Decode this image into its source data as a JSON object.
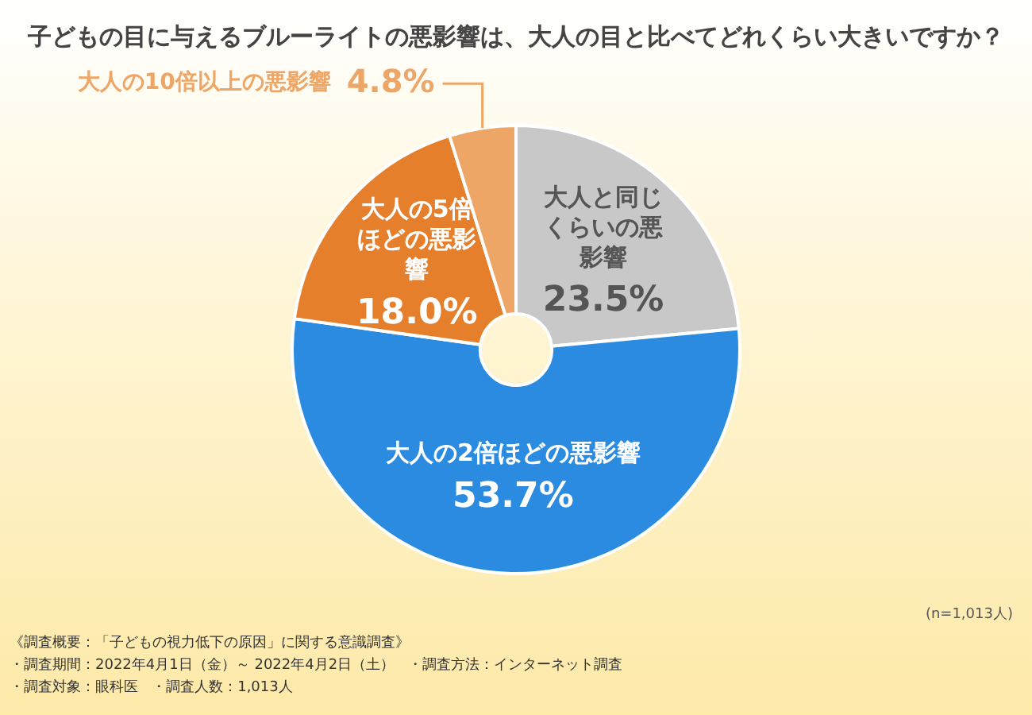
{
  "chart_data": {
    "type": "donut",
    "title": "子どもの目に与えるブルーライトの悪影響は、大人の目と比べてどれくらい大きいですか？",
    "categories": [
      "大人と同じくらいの悪影響",
      "大人の2倍ほどの悪影響",
      "大人の5倍ほどの悪影響",
      "大人の10倍以上の悪影響"
    ],
    "values": [
      23.5,
      53.7,
      18.0,
      4.8
    ],
    "colors": [
      "#c8c8c8",
      "#2a8be0",
      "#e57f2c",
      "#eda666"
    ],
    "value_labels": [
      "23.5%",
      "53.7%",
      "18.0%",
      "4.8%"
    ],
    "legend": false,
    "annotations": [
      "(n=1,013人)",
      "《調査概要：「子どもの視力低下の原因」に関する意識調査》",
      "・調査期間：2022年4月1日（金）～ 2022年4月2日（土）",
      "・調査方法：インターネット調査",
      "・調査対象：眼科医",
      "・調査人数：1,013人"
    ]
  }
}
